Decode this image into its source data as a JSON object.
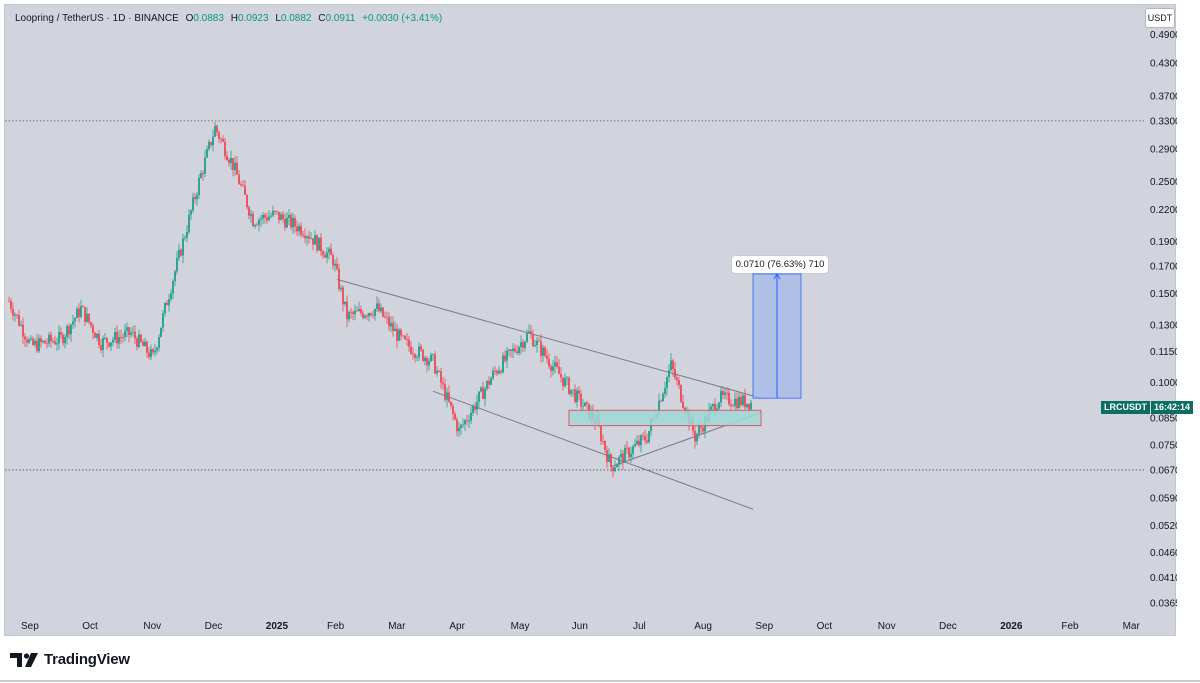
{
  "header": {
    "symbol_line": "Loopring / TetherUS · 1D · BINANCE",
    "open_label": "O",
    "open": "0.0883",
    "high_label": "H",
    "high": "0.0923",
    "low_label": "L",
    "low": "0.0882",
    "close_label": "C",
    "close": "0.0911",
    "change": "+0.0030 (+3.41%)"
  },
  "currency": "USDT",
  "ticker": {
    "symbol": "LRCUSDT",
    "countdown": "16:42:14"
  },
  "measure_label": "0.0710 (76.63%) 710",
  "brand": "TradingView",
  "colors": {
    "up": "#089981",
    "down": "#f23645",
    "channel": "#787b86",
    "zone_fill": "#9fd8d8",
    "zone_border": "#f23645",
    "measure_fill": "#a8b9e8",
    "measure_line": "#2962ff"
  },
  "chart_data": {
    "type": "candlestick",
    "y_scale": "log",
    "ylim": [
      0.033,
      0.55
    ],
    "y_ticks": [
      "0.4900",
      "0.4300",
      "0.3700",
      "0.3300",
      "0.2900",
      "0.2500",
      "0.2200",
      "0.1900",
      "0.1700",
      "0.1500",
      "0.1300",
      "0.1150",
      "0.1000",
      "0.0850",
      "0.0750",
      "0.0670",
      "0.0590",
      "0.0520",
      "0.0460",
      "0.0410",
      "0.0365"
    ],
    "x_ticks": [
      "Sep",
      "Oct",
      "Nov",
      "Dec",
      "2025",
      "Feb",
      "Mar",
      "Apr",
      "May",
      "Jun",
      "Jul",
      "Aug",
      "Sep",
      "Oct",
      "Nov",
      "Dec",
      "2026",
      "Feb",
      "Mar"
    ],
    "dotted_levels": [
      0.33,
      0.067
    ],
    "price_path": [
      {
        "date": "2024-08-25",
        "close": 0.145
      },
      {
        "date": "2024-09-05",
        "close": 0.118
      },
      {
        "date": "2024-09-20",
        "close": 0.122
      },
      {
        "date": "2024-09-30",
        "close": 0.14
      },
      {
        "date": "2024-10-10",
        "close": 0.12
      },
      {
        "date": "2024-10-25",
        "close": 0.125
      },
      {
        "date": "2024-11-05",
        "close": 0.112
      },
      {
        "date": "2024-11-12",
        "close": 0.145
      },
      {
        "date": "2024-11-20",
        "close": 0.19
      },
      {
        "date": "2024-11-28",
        "close": 0.25
      },
      {
        "date": "2024-12-06",
        "close": 0.32
      },
      {
        "date": "2024-12-15",
        "close": 0.27
      },
      {
        "date": "2024-12-25",
        "close": 0.21
      },
      {
        "date": "2025-01-05",
        "close": 0.215
      },
      {
        "date": "2025-01-20",
        "close": 0.2
      },
      {
        "date": "2025-02-03",
        "close": 0.175
      },
      {
        "date": "2025-02-10",
        "close": 0.135
      },
      {
        "date": "2025-02-25",
        "close": 0.14
      },
      {
        "date": "2025-03-10",
        "close": 0.12
      },
      {
        "date": "2025-03-25",
        "close": 0.11
      },
      {
        "date": "2025-04-07",
        "close": 0.08
      },
      {
        "date": "2025-04-25",
        "close": 0.105
      },
      {
        "date": "2025-05-12",
        "close": 0.125
      },
      {
        "date": "2025-05-30",
        "close": 0.1
      },
      {
        "date": "2025-06-15",
        "close": 0.083
      },
      {
        "date": "2025-06-22",
        "close": 0.068
      },
      {
        "date": "2025-07-10",
        "close": 0.078
      },
      {
        "date": "2025-07-22",
        "close": 0.108
      },
      {
        "date": "2025-08-03",
        "close": 0.078
      },
      {
        "date": "2025-08-15",
        "close": 0.093
      },
      {
        "date": "2025-08-31",
        "close": 0.0911
      }
    ],
    "annotations": [
      {
        "type": "channel_upper",
        "from": {
          "date": "2025-02-05",
          "price": 0.16
        },
        "to": {
          "date": "2025-09-05",
          "price": 0.093
        }
      },
      {
        "type": "channel_lower",
        "from": {
          "date": "2025-03-25",
          "price": 0.096
        },
        "to": {
          "date": "2025-09-01",
          "price": 0.056
        }
      },
      {
        "type": "support_trendline",
        "from": {
          "date": "2025-06-22",
          "price": 0.068
        },
        "to": {
          "date": "2025-09-05",
          "price": 0.087
        }
      },
      {
        "type": "support_zone",
        "from_date": "2025-06-01",
        "to_date": "2025-09-05",
        "low": 0.082,
        "high": 0.088
      },
      {
        "type": "price_range_measure",
        "from_date": "2025-09-01",
        "to_date": "2025-09-25",
        "low": 0.093,
        "high": 0.164,
        "label": "0.0710 (76.63%) 710"
      }
    ]
  }
}
